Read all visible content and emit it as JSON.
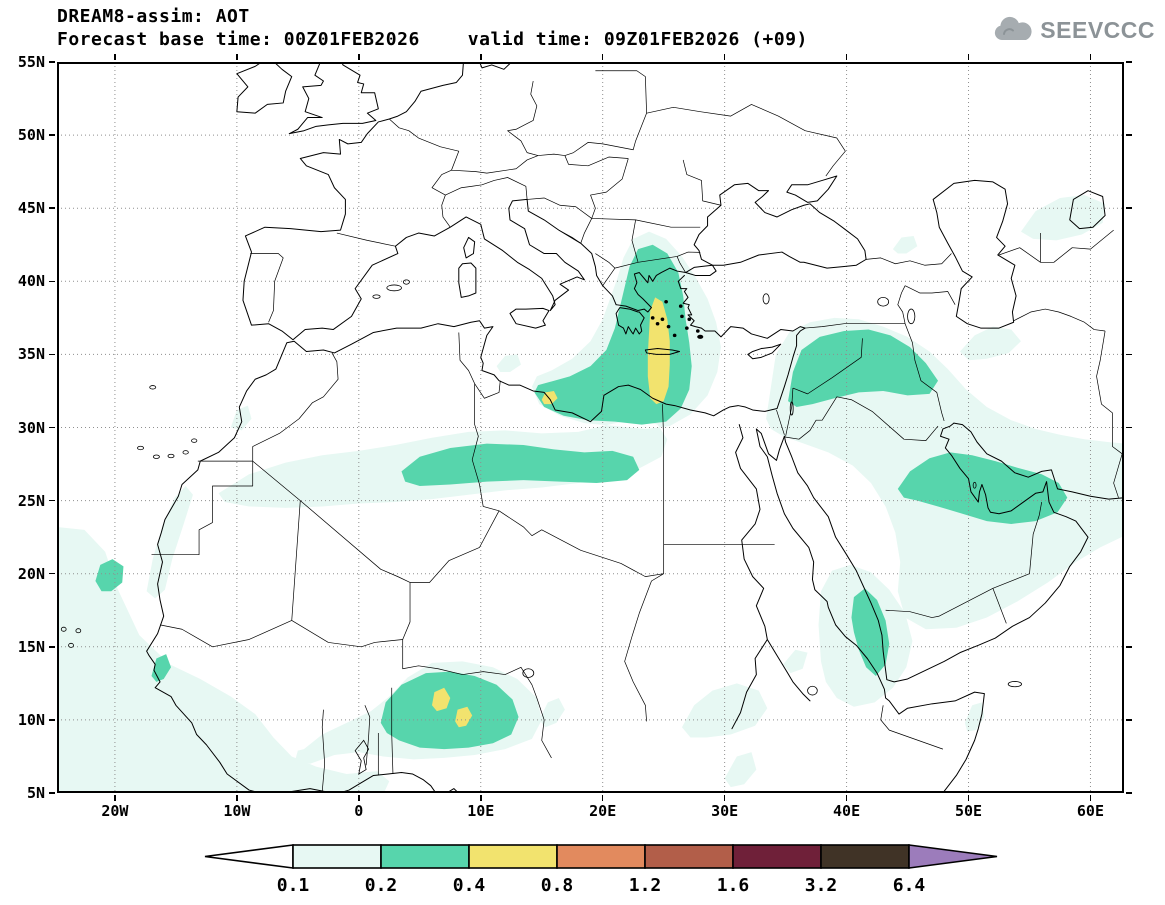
{
  "header": {
    "title": "DREAM8-assim: AOT",
    "base_time": "Forecast base time: 00Z01FEB2026",
    "valid_time": "valid time: 09Z01FEB2026 (+09)"
  },
  "logo": {
    "text": "SEEVCCC",
    "icon": "cloud-icon",
    "color": "#9aa1a6"
  },
  "map": {
    "lon_ticks": [
      {
        "label": "20W",
        "deg": -20
      },
      {
        "label": "10W",
        "deg": -10
      },
      {
        "label": "0",
        "deg": 0
      },
      {
        "label": "10E",
        "deg": 10
      },
      {
        "label": "20E",
        "deg": 20
      },
      {
        "label": "30E",
        "deg": 30
      },
      {
        "label": "40E",
        "deg": 40
      },
      {
        "label": "50E",
        "deg": 50
      },
      {
        "label": "60E",
        "deg": 60
      }
    ],
    "lat_ticks": [
      {
        "label": "55N",
        "deg": 55
      },
      {
        "label": "50N",
        "deg": 50
      },
      {
        "label": "45N",
        "deg": 45
      },
      {
        "label": "40N",
        "deg": 40
      },
      {
        "label": "35N",
        "deg": 35
      },
      {
        "label": "30N",
        "deg": 30
      },
      {
        "label": "25N",
        "deg": 25
      },
      {
        "label": "20N",
        "deg": 20
      },
      {
        "label": "15N",
        "deg": 15
      },
      {
        "label": "10N",
        "deg": 10
      },
      {
        "label": "5N",
        "deg": 5
      }
    ],
    "frame_color": "#000000",
    "grid_color": "#8f8f8f"
  },
  "colorbar": {
    "values": [
      "0.1",
      "0.2",
      "0.4",
      "0.8",
      "1.2",
      "1.6",
      "3.2",
      "6.4"
    ],
    "segment_colors": [
      "#ffffff",
      "#e7f8f3",
      "#57d5ac",
      "#f2e36e",
      "#e28a5e",
      "#b25e49",
      "#6f2039",
      "#403326",
      "#9c7cbb"
    ]
  },
  "chart_data": {
    "type": "filled-contour-map",
    "title": "DREAM8-assim: AOT",
    "variable": "Aerosol Optical Thickness (AOT)",
    "base_time": "00Z01FEB2026",
    "valid_time": "09Z01FEB2026",
    "forecast_offset_hours": 9,
    "lon_range_deg": [
      -25,
      63
    ],
    "lat_range_deg": [
      5,
      55
    ],
    "contour_levels": [
      0.1,
      0.2,
      0.4,
      0.8,
      1.2,
      1.6,
      3.2,
      6.4
    ],
    "level_colors": [
      "#e7f8f3",
      "#57d5ac",
      "#f2e36e",
      "#e28a5e",
      "#b25e49",
      "#6f2039",
      "#403326",
      "#9c7cbb"
    ],
    "features": [
      {
        "region": "Dust plume over Gulf of Sidra, Ionian Sea, Greece and Aegean",
        "approx_center_lonlat": [
          24,
          36
        ],
        "peak_range": "0.4-0.8"
      },
      {
        "region": "Sahel dust (Niger / Nigeria)",
        "approx_center_lonlat": [
          7,
          11
        ],
        "peak_range": "0.4-0.8"
      },
      {
        "region": "Central Sahara band near 27N (Algeria-Libya)",
        "approx_center_lonlat": [
          13,
          27.5
        ],
        "peak_range": "0.2-0.4"
      },
      {
        "region": "West Africa / Atlantic coast (Senegal-Mauritania)",
        "approx_center_lonlat": [
          -20,
          20
        ],
        "peak_range": "0.2-0.4"
      },
      {
        "region": "Levant / northern Mesopotamia band",
        "approx_center_lonlat": [
          40,
          34
        ],
        "peak_range": "0.2-0.4"
      },
      {
        "region": "Persian Gulf / eastern Arabia",
        "approx_center_lonlat": [
          51,
          25.5
        ],
        "peak_range": "0.2-0.4"
      },
      {
        "region": "Southern Red Sea",
        "approx_center_lonlat": [
          42,
          16
        ],
        "peak_range": "0.2-0.4"
      },
      {
        "region": "SE Caspian / Turkmenistan",
        "approx_center_lonlat": [
          57,
          44
        ],
        "peak_range": "0.1-0.2"
      }
    ]
  }
}
